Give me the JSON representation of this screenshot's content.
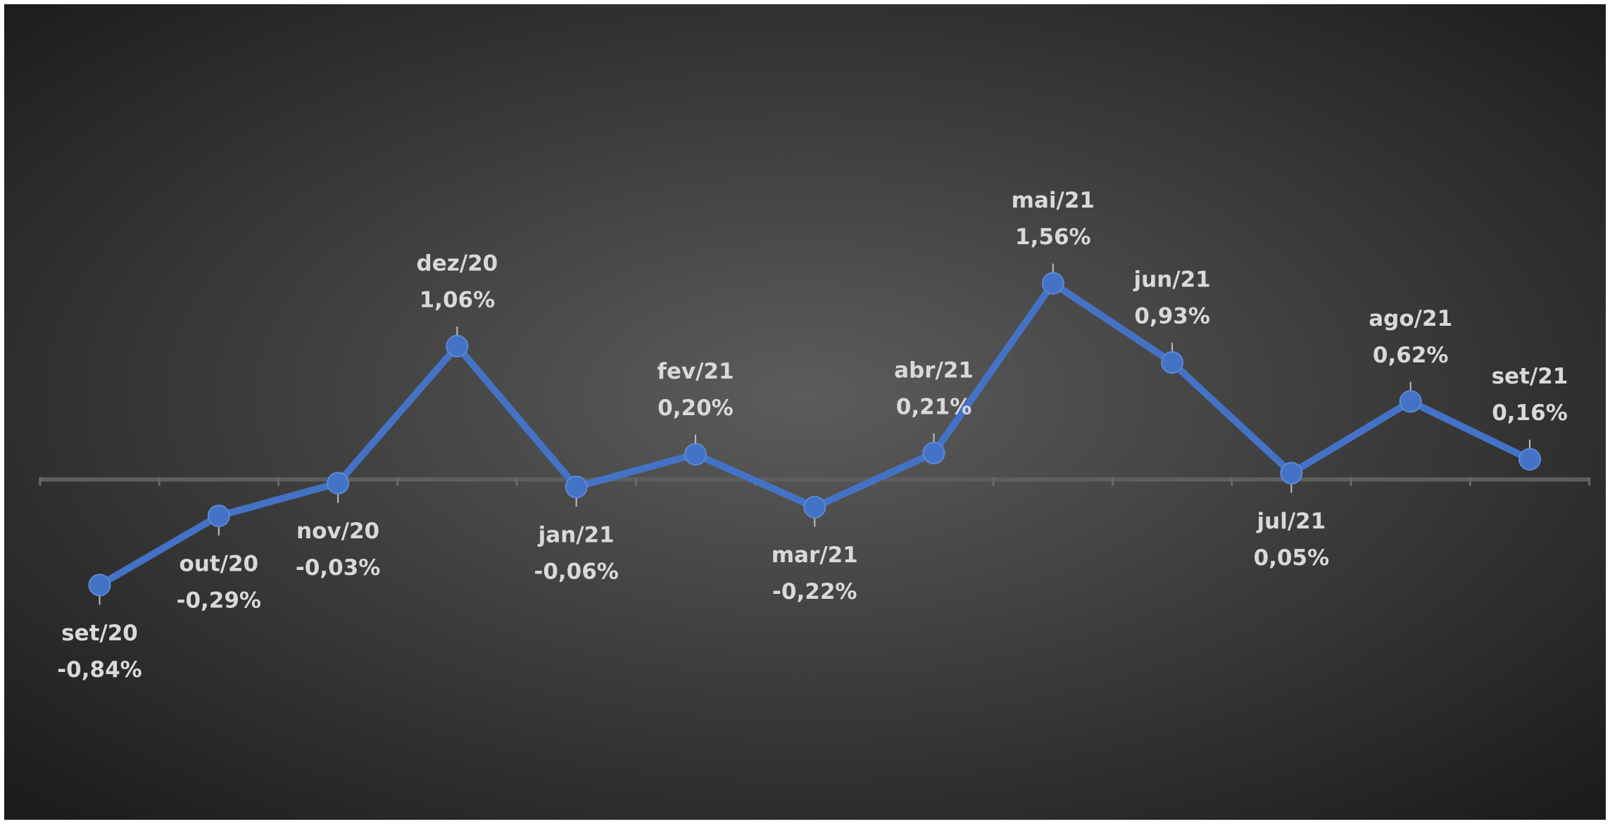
{
  "chart_data": {
    "type": "line",
    "categories": [
      "set/20",
      "out/20",
      "nov/20",
      "dez/20",
      "jan/21",
      "fev/21",
      "mar/21",
      "abr/21",
      "mai/21",
      "jun/21",
      "jul/21",
      "ago/21",
      "set/21"
    ],
    "values": [
      -0.84,
      -0.29,
      -0.03,
      1.06,
      -0.06,
      0.2,
      -0.22,
      0.21,
      1.56,
      0.93,
      0.05,
      0.62,
      0.16
    ],
    "value_labels": [
      "-0,84%",
      "-0,29%",
      "-0,03%",
      "1,06%",
      "-0,06%",
      "0,20%",
      "-0,22%",
      "0,21%",
      "1,56%",
      "0,93%",
      "0,05%",
      "0,62%",
      "0,16%"
    ],
    "color": "#4472c4"
  }
}
